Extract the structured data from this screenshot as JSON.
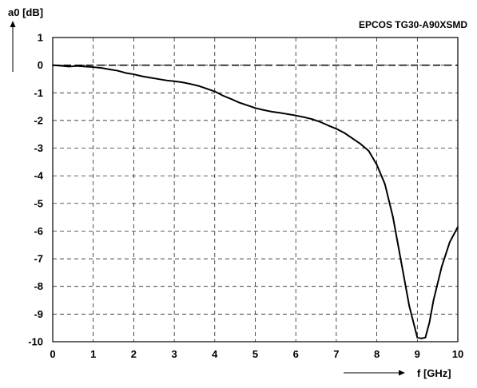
{
  "chart_data": {
    "type": "line",
    "title": "EPCOS TG30-A90XSMD",
    "xlabel": "f [GHz]",
    "ylabel": "a0 [dB]",
    "xlim": [
      0,
      10
    ],
    "ylim": [
      -10,
      1
    ],
    "xticks": [
      0,
      1,
      2,
      3,
      4,
      5,
      6,
      7,
      8,
      9,
      10
    ],
    "yticks": [
      1,
      0,
      -1,
      -2,
      -3,
      -4,
      -5,
      -6,
      -7,
      -8,
      -9,
      -10
    ],
    "grid": true,
    "grid_style": "dashed",
    "reference_line": {
      "y": 0,
      "style": "dashed"
    },
    "series": [
      {
        "color": "#000000",
        "x": [
          0,
          0.2,
          0.4,
          0.6,
          0.8,
          1.0,
          1.2,
          1.4,
          1.6,
          1.8,
          2.0,
          2.2,
          2.4,
          2.6,
          2.8,
          3.0,
          3.2,
          3.4,
          3.6,
          3.8,
          4.0,
          4.2,
          4.4,
          4.6,
          4.8,
          5.0,
          5.2,
          5.4,
          5.6,
          5.8,
          6.0,
          6.2,
          6.4,
          6.6,
          6.8,
          7.0,
          7.2,
          7.4,
          7.6,
          7.8,
          8.0,
          8.2,
          8.4,
          8.6,
          8.8,
          9.0,
          9.1,
          9.2,
          9.3,
          9.4,
          9.6,
          9.8,
          10.0
        ],
        "y": [
          0,
          -0.02,
          -0.05,
          -0.03,
          -0.05,
          -0.07,
          -0.1,
          -0.15,
          -0.2,
          -0.28,
          -0.33,
          -0.4,
          -0.45,
          -0.5,
          -0.55,
          -0.58,
          -0.62,
          -0.68,
          -0.75,
          -0.85,
          -0.95,
          -1.1,
          -1.22,
          -1.35,
          -1.45,
          -1.55,
          -1.62,
          -1.68,
          -1.72,
          -1.77,
          -1.82,
          -1.88,
          -1.95,
          -2.05,
          -2.18,
          -2.3,
          -2.45,
          -2.65,
          -2.85,
          -3.1,
          -3.6,
          -4.3,
          -5.5,
          -7.1,
          -8.7,
          -9.85,
          -9.88,
          -9.85,
          -9.3,
          -8.5,
          -7.3,
          -6.4,
          -5.85
        ]
      }
    ]
  }
}
